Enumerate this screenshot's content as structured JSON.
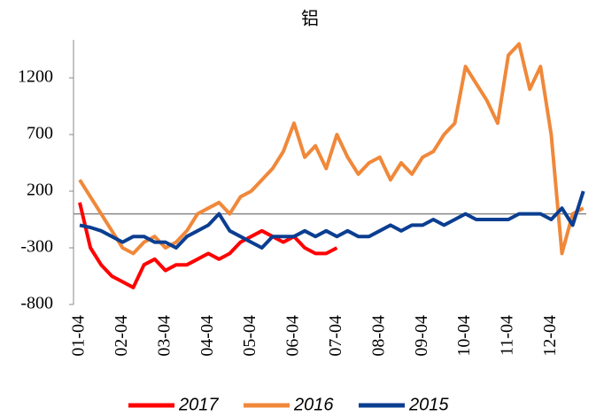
{
  "chart_data": {
    "type": "line",
    "title": "铝",
    "categories": [
      "01-04",
      null,
      null,
      null,
      "02-04",
      null,
      null,
      null,
      "03-04",
      null,
      null,
      null,
      "04-04",
      null,
      null,
      null,
      "05-04",
      null,
      null,
      null,
      "06-04",
      null,
      null,
      null,
      "07-04",
      null,
      null,
      null,
      "08-04",
      null,
      null,
      null,
      "09-04",
      null,
      null,
      null,
      "10-04",
      null,
      null,
      null,
      "11-04",
      null,
      null,
      null,
      "12-04",
      null,
      null,
      null
    ],
    "series": [
      {
        "name": "2017",
        "color": "#ff0000",
        "values": [
          100,
          -300,
          -450,
          -550,
          -600,
          -650,
          -450,
          -400,
          -500,
          -450,
          -450,
          -400,
          -350,
          -400,
          -350,
          -250,
          -200,
          -150,
          -200,
          -250,
          -200,
          -300,
          -350,
          -350,
          -300,
          null,
          null,
          null,
          null,
          null,
          null,
          null,
          null,
          null,
          null,
          null,
          null,
          null,
          null,
          null,
          null,
          null,
          null,
          null,
          null,
          null,
          null,
          null
        ]
      },
      {
        "name": "2016",
        "color": "#f0883a",
        "values": [
          300,
          150,
          0,
          -150,
          -300,
          -350,
          -250,
          -200,
          -300,
          -250,
          -150,
          0,
          50,
          100,
          0,
          150,
          200,
          300,
          400,
          550,
          800,
          500,
          600,
          400,
          700,
          500,
          350,
          450,
          500,
          300,
          450,
          350,
          500,
          550,
          700,
          800,
          1300,
          1150,
          1000,
          800,
          1400,
          1500,
          1100,
          1300,
          700,
          -350,
          0,
          50
        ]
      },
      {
        "name": "2015",
        "color": "#0b3e91",
        "values": [
          -100,
          -120,
          -150,
          -200,
          -250,
          -200,
          -200,
          -250,
          -250,
          -300,
          -200,
          -150,
          -100,
          0,
          -150,
          -200,
          -250,
          -300,
          -200,
          -200,
          -200,
          -150,
          -200,
          -150,
          -200,
          -150,
          -200,
          -200,
          -150,
          -100,
          -150,
          -100,
          -100,
          -50,
          -100,
          -50,
          0,
          -50,
          -50,
          -50,
          -50,
          0,
          0,
          0,
          -50,
          50,
          -100,
          200
        ]
      }
    ],
    "ylim": [
      -800,
      1536
    ],
    "yticks": [
      -800,
      -300,
      200,
      700,
      1200
    ]
  }
}
